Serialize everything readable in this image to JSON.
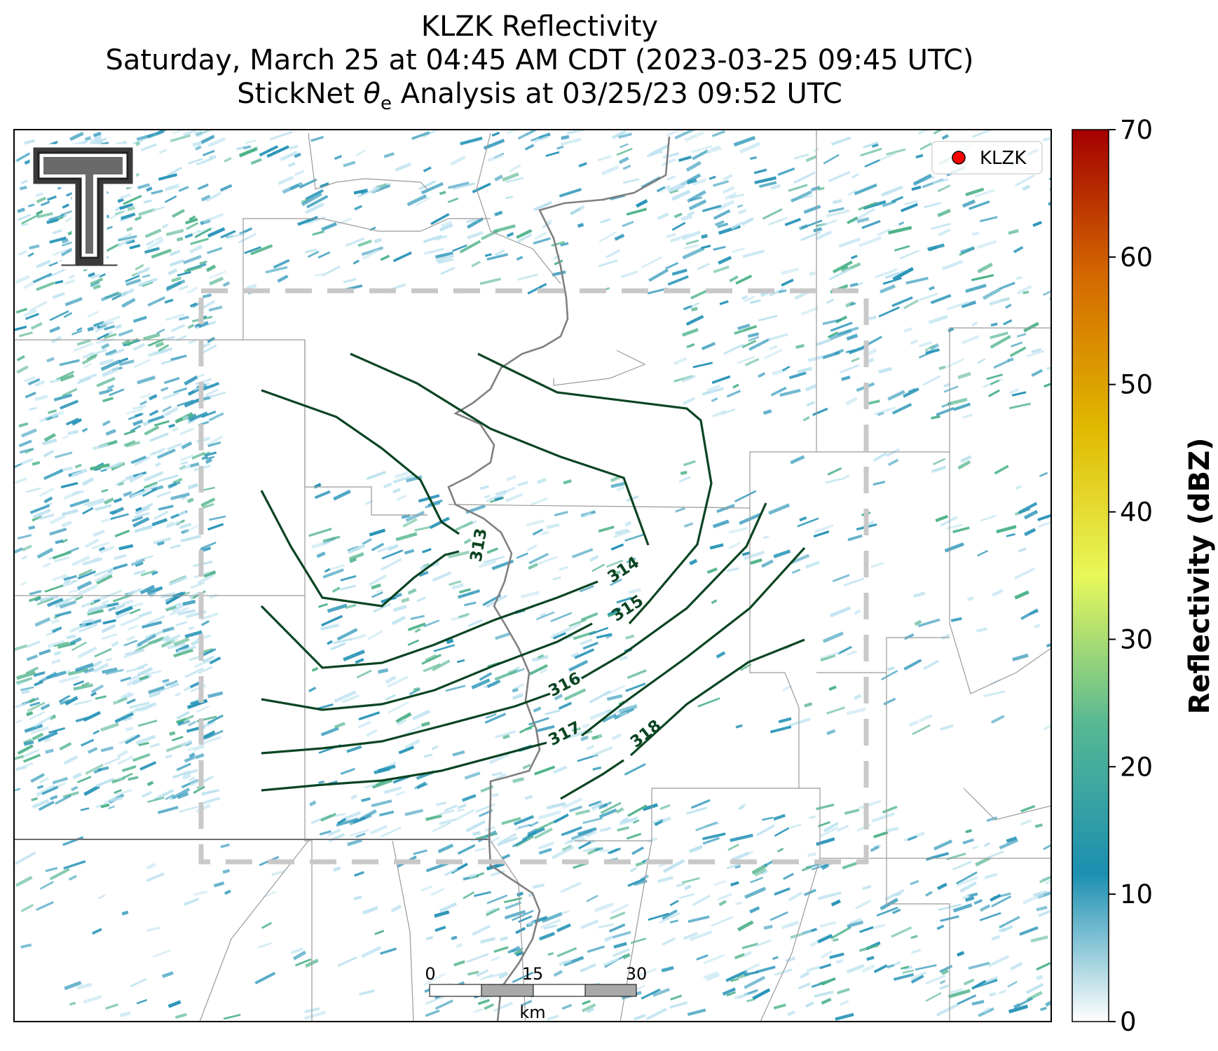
{
  "title": {
    "line1": "KLZK Reflectivity",
    "line2": "Saturday, March 25 at 04:45 AM CDT (2023-03-25 09:45 UTC)",
    "line3_prefix": "StickNet ",
    "line3_theta": "θ",
    "line3_sub": "e",
    "line3_suffix": " Analysis at 03/25/23 09:52 UTC"
  },
  "legend": {
    "label": "KLZK",
    "marker_color": "#ff0000"
  },
  "colorbar": {
    "label": "Reflectivity (dBZ)",
    "ticks": [
      "0",
      "10",
      "20",
      "30",
      "40",
      "50",
      "60",
      "70"
    ],
    "range": [
      0,
      70
    ],
    "stops": [
      "#ffffff",
      "#1b8fb0",
      "#57b894",
      "#e8f85a",
      "#e0b800",
      "#d46a00",
      "#a30000"
    ]
  },
  "contours": {
    "labels": [
      "313",
      "314",
      "315",
      "316",
      "317",
      "318"
    ],
    "color": "#0b4422"
  },
  "scalebar": {
    "ticks": [
      "0",
      "15",
      "30"
    ],
    "unit": "km"
  },
  "colors": {
    "analysis_box": "#c8c8c8",
    "river": "#808080",
    "county_lines": "#9a9a9a",
    "echo_light": "#bfe3f0",
    "echo_mid": "#2a95b8",
    "echo_green": "#4fb38a"
  },
  "logo": {
    "icon": "double-t-logo",
    "letter": "T"
  }
}
